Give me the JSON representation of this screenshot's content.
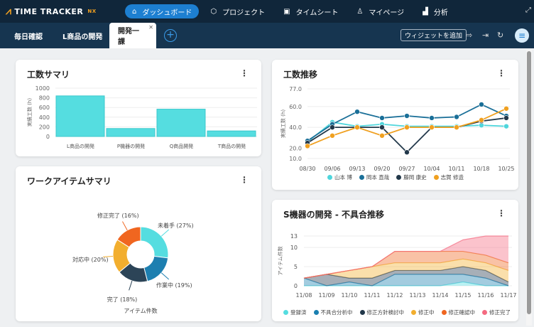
{
  "app": {
    "logo": "TIME TRACKER",
    "logo_suffix": "NX",
    "accent": "#1d7fd1"
  },
  "nav": [
    {
      "label": "ダッシュボード",
      "icon": "home-icon",
      "active": true
    },
    {
      "label": "プロジェクト",
      "icon": "cube-icon"
    },
    {
      "label": "タイムシート",
      "icon": "calendar-icon"
    },
    {
      "label": "マイページ",
      "icon": "user-icon"
    },
    {
      "label": "分析",
      "icon": "bar-chart-icon"
    }
  ],
  "tabs": [
    {
      "label": "毎日確認"
    },
    {
      "label": "L商品の開発"
    },
    {
      "label": "開発一課",
      "active": true
    }
  ],
  "toolbar": {
    "add_widget": "ウィジェットを追加"
  },
  "chart_data": [
    {
      "type": "bar",
      "title": "工数サマリ",
      "ylabel": "実績工数 (h)",
      "ylim": [
        0,
        1000
      ],
      "yticks": [
        0,
        200,
        400,
        600,
        800,
        1000
      ],
      "categories": [
        "L商品の開発",
        "P機器の開発",
        "Q商品開発",
        "T商品の開発"
      ],
      "values": [
        840,
        165,
        565,
        115
      ],
      "color": "#55dde0"
    },
    {
      "type": "pie",
      "title": "ワークアイテムサマリ",
      "xlabel": "アイテム件数",
      "donut": true,
      "slices": [
        {
          "label": "未着手 (27%)",
          "value": 27,
          "color": "#55dde0"
        },
        {
          "label": "作業中 (19%)",
          "value": 19,
          "color": "#1d7fb0"
        },
        {
          "label": "完了 (18%)",
          "value": 18,
          "color": "#2c4457"
        },
        {
          "label": "対応中 (20%)",
          "value": 20,
          "color": "#f2ae2e"
        },
        {
          "label": "修正完了 (16%)",
          "value": 16,
          "color": "#f06620"
        }
      ]
    },
    {
      "type": "line",
      "title": "工数推移",
      "ylabel": "実績工数 (h)",
      "ylim": [
        10,
        77
      ],
      "yticks": [
        10,
        20,
        40,
        60,
        77
      ],
      "yticklabels": [
        "10.0",
        "20.0",
        "40.0",
        "60.0",
        "77.0"
      ],
      "x": [
        "08/30",
        "09/06",
        "09/13",
        "09/20",
        "09/27",
        "10/04",
        "10/11",
        "10/18",
        "10/25"
      ],
      "legend": "bottom",
      "series": [
        {
          "name": "山本 博",
          "color": "#4fd6dc",
          "values": [
            26,
            45,
            41,
            43,
            41,
            41,
            41,
            42,
            41
          ]
        },
        {
          "name": "岡本 直哉",
          "color": "#1a6f98",
          "values": [
            27,
            43,
            55,
            49,
            51,
            49,
            50,
            62,
            51
          ]
        },
        {
          "name": "藤岡 康史",
          "color": "#22384a",
          "values": [
            25,
            40,
            40,
            40,
            16,
            40,
            40,
            46,
            49
          ]
        },
        {
          "name": "志賀 修造",
          "color": "#f0a020",
          "values": [
            22,
            32,
            40,
            32,
            40,
            40,
            40,
            47,
            58
          ]
        }
      ]
    },
    {
      "type": "area",
      "stacked": true,
      "title": "S機器の開発 - 不具合推移",
      "ylabel": "アイテム件数",
      "ylim": [
        0,
        13
      ],
      "yticks": [
        0,
        5,
        10,
        13
      ],
      "x": [
        "11/08",
        "11/09",
        "11/10",
        "11/11",
        "11/12",
        "11/13",
        "11/14",
        "11/15",
        "11/16",
        "11/17"
      ],
      "legend": "bottom",
      "series": [
        {
          "name": "登録済",
          "color": "#55dde0",
          "values": [
            0,
            0,
            0,
            0,
            0,
            0,
            0,
            1,
            0,
            0
          ]
        },
        {
          "name": "不具合分析中",
          "color": "#1a7fb0",
          "values": [
            2,
            0,
            1,
            0,
            3,
            3,
            3,
            2,
            2,
            0
          ]
        },
        {
          "name": "修正方針検討中",
          "color": "#22384a",
          "values": [
            0,
            3,
            1,
            2,
            1,
            1,
            1,
            2,
            2,
            1
          ]
        },
        {
          "name": "修正中",
          "color": "#f2ae2e",
          "values": [
            0,
            0,
            2,
            3,
            2,
            2,
            2,
            2,
            2,
            3
          ]
        },
        {
          "name": "修正確認中",
          "color": "#f06620",
          "values": [
            0,
            0,
            0,
            0,
            3,
            3,
            3,
            2,
            2,
            2
          ]
        },
        {
          "name": "修正完了",
          "color": "#f46a80",
          "values": [
            0,
            0,
            0,
            0,
            0,
            0,
            0,
            3,
            5,
            7
          ]
        }
      ]
    }
  ]
}
